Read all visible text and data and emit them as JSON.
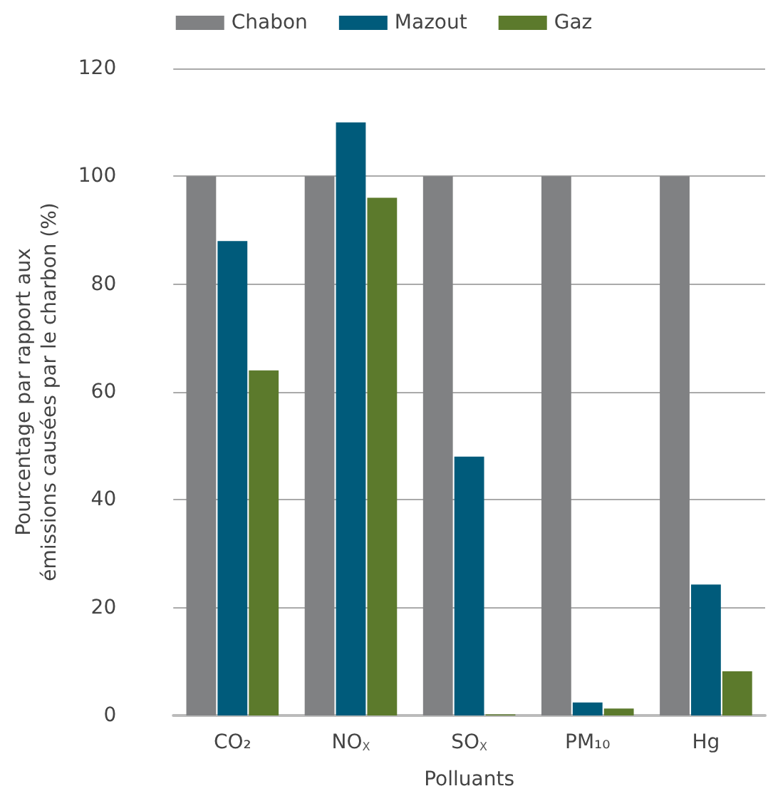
{
  "chart_data": {
    "type": "bar",
    "xlabel": "Polluants",
    "ylabel": "Pourcentage par rapport aux émissions causées par le charbon (%)",
    "categories": [
      "CO₂",
      "NO$_{X}$",
      "SO$_{X}$",
      "PM₁₀",
      "Hg"
    ],
    "series": [
      {
        "name": "Chabon",
        "color": "#808183",
        "values": [
          100,
          100,
          100,
          100,
          100
        ]
      },
      {
        "name": "Mazout",
        "color": "#005b7b",
        "values": [
          88,
          110,
          48,
          2.4,
          24.3
        ]
      },
      {
        "name": "Gaz",
        "color": "#5c7a2c",
        "values": [
          64,
          96,
          0.2,
          1.3,
          8.2
        ]
      }
    ],
    "ylim": [
      0,
      120
    ],
    "yticks": [
      0,
      20,
      40,
      60,
      80,
      100,
      120
    ],
    "grid": "y",
    "legend": "top"
  }
}
